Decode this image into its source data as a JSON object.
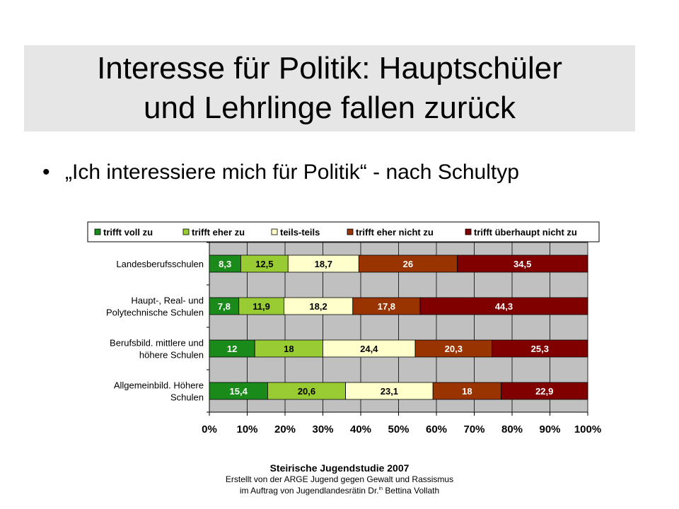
{
  "slide": {
    "title_line_1": "Interesse für Politik: Hauptschüler",
    "title_line_2": "und Lehrlinge fallen zurück",
    "bullet_symbol": "•",
    "bullet_text": "„Ich interessiere mich für Politik“ - nach Schultyp"
  },
  "footer": {
    "title": "Steirische Jugendstudie 2007",
    "line_1": "Erstellt von der ARGE Jugend gegen Gewalt und Rassismus",
    "line_2_prefix": "im Auftrag von Jugendlandesrätin Dr.",
    "line_2_sup": "in",
    "line_2_suffix": " Bettina Vollath"
  },
  "chart_data": {
    "type": "bar",
    "orientation": "horizontal",
    "stacked": true,
    "percent_stacked": true,
    "categories": [
      "Landesberufsschulen",
      "Haupt-, Real- und Polytechnische Schulen",
      "Berufsbild. mittlere und höhere Schulen",
      "Allgemeinbild. Höhere Schulen"
    ],
    "category_label_lines": [
      [
        "Landesberufsschulen"
      ],
      [
        "Haupt-, Real- und",
        "Polytechnische Schulen"
      ],
      [
        "Berufsbild. mittlere und",
        "höhere Schulen"
      ],
      [
        "Allgemeinbild. Höhere",
        "Schulen"
      ]
    ],
    "series": [
      {
        "name": "trifft voll zu",
        "color": "#1a8a1a",
        "values": [
          8.3,
          7.8,
          12,
          15.4
        ],
        "labels": [
          "8,3",
          "7,8",
          "12",
          "15,4"
        ],
        "label_color": "#ffffff"
      },
      {
        "name": "trifft eher zu",
        "color": "#99cc33",
        "values": [
          12.5,
          11.9,
          18,
          20.6
        ],
        "labels": [
          "12,5",
          "11,9",
          "18",
          "20,6"
        ],
        "label_color": "#000000"
      },
      {
        "name": "teils-teils",
        "color": "#ffffcc",
        "values": [
          18.7,
          18.2,
          24.4,
          23.1
        ],
        "labels": [
          "18,7",
          "18,2",
          "24,4",
          "23,1"
        ],
        "label_color": "#000000"
      },
      {
        "name": "trifft eher nicht zu",
        "color": "#993300",
        "values": [
          26,
          17.8,
          20.3,
          18
        ],
        "labels": [
          "26",
          "17,8",
          "20,3",
          "18"
        ],
        "label_color": "#ffffff"
      },
      {
        "name": "trifft überhaupt nicht zu",
        "color": "#800000",
        "values": [
          34.5,
          44.3,
          25.3,
          22.9
        ],
        "labels": [
          "34,5",
          "44,3",
          "25,3",
          "22,9"
        ],
        "label_color": "#ffffff"
      }
    ],
    "x_ticks": [
      "0%",
      "10%",
      "20%",
      "30%",
      "40%",
      "50%",
      "60%",
      "70%",
      "80%",
      "90%",
      "100%"
    ],
    "xlim": [
      0,
      100
    ],
    "grid": true,
    "plot_background": "#c0c0c0",
    "legend_position": "top"
  }
}
